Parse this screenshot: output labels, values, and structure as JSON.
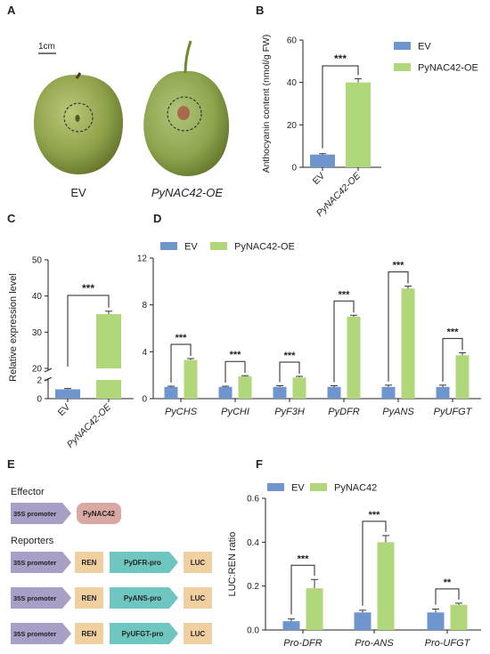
{
  "panels": {
    "A": {
      "letter": "A",
      "scale_bar": "1cm",
      "labels": [
        "EV",
        "PyNAC42-OE"
      ]
    },
    "E": {
      "letter": "E",
      "effector_title": "Effector",
      "effector_promoter": "35S promoter",
      "effector_gene": "PyNAC42",
      "reporters_title": "Reporters",
      "reporters": [
        {
          "promoter": "35S promoter",
          "ren": "REN",
          "pro": "PyDFR-pro",
          "luc": "LUC"
        },
        {
          "promoter": "35S promoter",
          "ren": "REN",
          "pro": "PyANS-pro",
          "luc": "LUC"
        },
        {
          "promoter": "35S promoter",
          "ren": "REN",
          "pro": "PyUFGT-pro",
          "luc": "LUC"
        }
      ]
    }
  },
  "colors": {
    "ev": "#6f95cf",
    "oe": "#b1d77b",
    "effector_box": "#d9a8a4",
    "promoter_arrow": "#a89fc6",
    "ren_box": "#f0cfa0",
    "pro_arrow": "#6fc5c0"
  },
  "chart_data": [
    {
      "panel": "B",
      "type": "bar",
      "categories": [
        "EV",
        "PyNAC42-OE"
      ],
      "values": [
        6,
        40
      ],
      "errors": [
        0.4,
        1.8
      ],
      "ylabel": "Anthocyanin content (nmol/g FW)",
      "ylim": [
        0,
        60
      ],
      "yticks": [
        "0",
        "20",
        "40",
        "60"
      ],
      "legend": [
        "EV",
        "PyNAC42-OE"
      ],
      "significance": "***"
    },
    {
      "panel": "C",
      "type": "bar",
      "categories": [
        "EV",
        "PyNAC42-OE"
      ],
      "values": [
        1,
        35
      ],
      "errors": [
        0.08,
        0.8
      ],
      "ylabel": "Relative expression level",
      "yticks": [
        "0",
        "2",
        "20",
        "30",
        "40",
        "50"
      ],
      "significance": "***",
      "broken_axis": true
    },
    {
      "panel": "D",
      "type": "bar",
      "categories": [
        "PyCHS",
        "PyCHI",
        "PyF3H",
        "PyDFR",
        "PyANS",
        "PyUFGT"
      ],
      "series": [
        {
          "name": "EV",
          "values": [
            1,
            1,
            1,
            1,
            1,
            1
          ],
          "errors": [
            0.06,
            0.06,
            0.1,
            0.1,
            0.15,
            0.15
          ]
        },
        {
          "name": "PyNAC42-OE",
          "values": [
            3.3,
            1.9,
            1.8,
            7.0,
            9.4,
            3.7
          ],
          "errors": [
            0.12,
            0.06,
            0.1,
            0.12,
            0.2,
            0.22
          ]
        }
      ],
      "ylim": [
        0,
        12
      ],
      "yticks": [
        "0",
        "4",
        "8",
        "12"
      ],
      "significance": [
        "***",
        "***",
        "***",
        "***",
        "***",
        "***"
      ]
    },
    {
      "panel": "F",
      "type": "bar",
      "categories": [
        "Pro-DFR",
        "Pro-ANS",
        "Pro-UFGT"
      ],
      "series": [
        {
          "name": "EV",
          "values": [
            0.04,
            0.08,
            0.08
          ],
          "errors": [
            0.01,
            0.01,
            0.015
          ]
        },
        {
          "name": "PyNAC42",
          "values": [
            0.19,
            0.4,
            0.115
          ],
          "errors": [
            0.04,
            0.03,
            0.007
          ]
        }
      ],
      "ylabel": "LUC:REN ratio",
      "ylim": [
        0,
        0.6
      ],
      "yticks": [
        "0.0",
        "0.2",
        "0.4",
        "0.6"
      ],
      "significance": [
        "***",
        "***",
        "**"
      ]
    }
  ]
}
